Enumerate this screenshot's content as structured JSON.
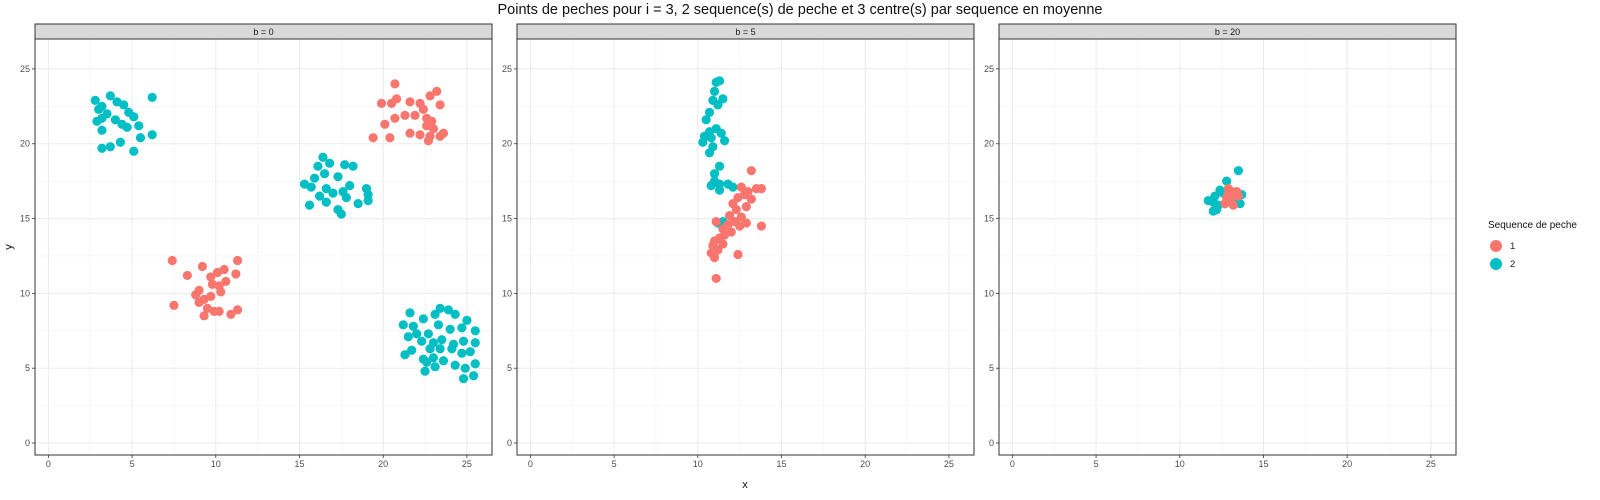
{
  "chart_data": {
    "type": "scatter",
    "title": "Points de peches pour i = 3, 2 sequence(s) de peche et 3 centre(s) par sequence en moyenne",
    "xlabel": "x",
    "ylabel": "y",
    "xlim": [
      -0.8,
      26.5
    ],
    "ylim": [
      -0.8,
      27
    ],
    "x_ticks": [
      0,
      5,
      10,
      15,
      20,
      25
    ],
    "y_ticks": [
      0,
      5,
      10,
      15,
      20,
      25
    ],
    "grid": true,
    "legend": {
      "title": "Sequence de peche",
      "placement": "right",
      "entries": [
        {
          "label": "1",
          "color": "#F8766D"
        },
        {
          "label": "2",
          "color": "#00BFC4"
        }
      ]
    },
    "facets": [
      {
        "label": "b = 0",
        "series": [
          {
            "name": "1",
            "color": "#F8766D",
            "points": [
              [
                7.4,
                12.2
              ],
              [
                8.3,
                11.2
              ],
              [
                9.2,
                11.8
              ],
              [
                9.7,
                11.1
              ],
              [
                10.1,
                11.4
              ],
              [
                10.5,
                11.6
              ],
              [
                11.3,
                12.2
              ],
              [
                11.2,
                11.3
              ],
              [
                10.6,
                10.8
              ],
              [
                10.2,
                10.5
              ],
              [
                9.8,
                10.6
              ],
              [
                9.0,
                10.2
              ],
              [
                8.8,
                9.9
              ],
              [
                9.3,
                9.6
              ],
              [
                9.7,
                9.8
              ],
              [
                10.3,
                10.1
              ],
              [
                9.0,
                9.4
              ],
              [
                9.5,
                9.0
              ],
              [
                9.9,
                8.8
              ],
              [
                9.3,
                8.5
              ],
              [
                10.2,
                8.8
              ],
              [
                10.9,
                8.6
              ],
              [
                11.3,
                8.9
              ],
              [
                7.5,
                9.2
              ]
            ]
          },
          {
            "name": "1",
            "color": "#F8766D",
            "points": [
              [
                20.7,
                24.0
              ],
              [
                19.9,
                22.7
              ],
              [
                20.5,
                22.7
              ],
              [
                20.8,
                23.0
              ],
              [
                21.6,
                22.8
              ],
              [
                22.2,
                22.7
              ],
              [
                22.8,
                23.2
              ],
              [
                23.2,
                23.5
              ],
              [
                23.4,
                22.6
              ],
              [
                22.4,
                22.3
              ],
              [
                21.3,
                21.9
              ],
              [
                20.7,
                21.7
              ],
              [
                20.1,
                21.3
              ],
              [
                21.9,
                21.9
              ],
              [
                22.6,
                21.7
              ],
              [
                22.9,
                21.5
              ],
              [
                23.0,
                21.0
              ],
              [
                22.6,
                21.2
              ],
              [
                21.6,
                20.7
              ],
              [
                22.2,
                20.6
              ],
              [
                22.8,
                20.5
              ],
              [
                23.4,
                20.5
              ],
              [
                22.7,
                20.2
              ],
              [
                20.4,
                20.4
              ],
              [
                19.4,
                20.4
              ],
              [
                23.6,
                20.7
              ]
            ]
          },
          {
            "name": "2",
            "color": "#00BFC4",
            "points": [
              [
                2.8,
                22.9
              ],
              [
                3.2,
                22.5
              ],
              [
                3.7,
                23.2
              ],
              [
                4.1,
                22.8
              ],
              [
                4.5,
                22.6
              ],
              [
                3.0,
                22.3
              ],
              [
                3.5,
                22.0
              ],
              [
                4.8,
                22.1
              ],
              [
                5.1,
                21.8
              ],
              [
                3.2,
                21.7
              ],
              [
                2.9,
                21.5
              ],
              [
                4.0,
                21.6
              ],
              [
                4.4,
                21.3
              ],
              [
                4.7,
                21.1
              ],
              [
                3.2,
                20.9
              ],
              [
                5.4,
                21.2
              ],
              [
                5.5,
                20.4
              ],
              [
                6.2,
                20.6
              ],
              [
                4.3,
                20.1
              ],
              [
                3.7,
                19.8
              ],
              [
                3.2,
                19.7
              ],
              [
                5.1,
                19.5
              ],
              [
                6.2,
                23.1
              ]
            ]
          },
          {
            "name": "2",
            "color": "#00BFC4",
            "points": [
              [
                16.4,
                19.1
              ],
              [
                16.8,
                18.7
              ],
              [
                16.1,
                18.5
              ],
              [
                17.7,
                18.6
              ],
              [
                18.2,
                18.5
              ],
              [
                16.5,
                18.0
              ],
              [
                15.9,
                17.7
              ],
              [
                17.3,
                17.8
              ],
              [
                15.3,
                17.3
              ],
              [
                15.7,
                17.1
              ],
              [
                16.6,
                17.0
              ],
              [
                17.0,
                16.7
              ],
              [
                17.6,
                16.8
              ],
              [
                18.0,
                17.2
              ],
              [
                19.0,
                17.0
              ],
              [
                19.1,
                16.6
              ],
              [
                16.2,
                16.5
              ],
              [
                17.8,
                16.4
              ],
              [
                18.5,
                16.0
              ],
              [
                19.1,
                16.2
              ],
              [
                15.6,
                15.9
              ],
              [
                17.3,
                15.6
              ],
              [
                17.5,
                15.3
              ],
              [
                16.6,
                16.1
              ]
            ]
          },
          {
            "name": "2",
            "color": "#00BFC4",
            "points": [
              [
                21.2,
                7.9
              ],
              [
                21.6,
                8.7
              ],
              [
                21.8,
                7.8
              ],
              [
                22.4,
                8.3
              ],
              [
                23.1,
                8.6
              ],
              [
                23.4,
                9.0
              ],
              [
                23.9,
                8.9
              ],
              [
                24.3,
                8.6
              ],
              [
                25.0,
                8.2
              ],
              [
                25.5,
                7.5
              ],
              [
                24.7,
                7.7
              ],
              [
                24.0,
                7.6
              ],
              [
                23.3,
                7.9
              ],
              [
                22.7,
                7.3
              ],
              [
                22.0,
                7.3
              ],
              [
                21.5,
                7.1
              ],
              [
                22.3,
                6.8
              ],
              [
                23.0,
                6.7
              ],
              [
                23.5,
                6.9
              ],
              [
                24.2,
                6.6
              ],
              [
                24.8,
                6.8
              ],
              [
                25.5,
                6.7
              ],
              [
                21.7,
                6.2
              ],
              [
                22.8,
                6.3
              ],
              [
                23.4,
                6.3
              ],
              [
                24.1,
                6.3
              ],
              [
                24.7,
                6.0
              ],
              [
                25.2,
                6.1
              ],
              [
                21.3,
                5.9
              ],
              [
                22.4,
                5.6
              ],
              [
                23.0,
                5.7
              ],
              [
                23.6,
                5.5
              ],
              [
                24.3,
                5.2
              ],
              [
                24.9,
                5.0
              ],
              [
                25.5,
                5.3
              ],
              [
                22.6,
                5.4
              ],
              [
                23.1,
                5.1
              ],
              [
                22.5,
                4.8
              ],
              [
                24.8,
                4.3
              ],
              [
                25.4,
                4.5
              ]
            ]
          }
        ]
      },
      {
        "label": "b = 5",
        "series": [
          {
            "name": "2",
            "color": "#00BFC4",
            "points": [
              [
                11.1,
                24.1
              ],
              [
                11.3,
                24.2
              ],
              [
                11.0,
                23.5
              ],
              [
                11.5,
                23.0
              ],
              [
                10.9,
                22.9
              ],
              [
                11.2,
                22.6
              ],
              [
                10.7,
                22.1
              ],
              [
                10.5,
                21.6
              ],
              [
                11.1,
                21.0
              ],
              [
                10.7,
                20.8
              ],
              [
                10.4,
                20.5
              ],
              [
                10.8,
                20.4
              ],
              [
                11.4,
                20.7
              ],
              [
                10.3,
                20.1
              ],
              [
                10.9,
                19.8
              ],
              [
                11.6,
                20.2
              ],
              [
                10.7,
                19.4
              ],
              [
                11.3,
                18.5
              ],
              [
                11.0,
                18.0
              ],
              [
                11.3,
                17.3
              ],
              [
                11.0,
                17.5
              ],
              [
                11.8,
                17.3
              ],
              [
                11.3,
                16.9
              ],
              [
                11.5,
                14.8
              ],
              [
                11.2,
                14.7
              ],
              [
                12.1,
                17.1
              ],
              [
                10.8,
                17.2
              ]
            ]
          },
          {
            "name": "1",
            "color": "#F8766D",
            "points": [
              [
                13.2,
                18.2
              ],
              [
                12.6,
                17.1
              ],
              [
                13.5,
                17.0
              ],
              [
                13.0,
                16.8
              ],
              [
                13.8,
                17.0
              ],
              [
                12.8,
                16.6
              ],
              [
                12.4,
                16.4
              ],
              [
                13.2,
                16.3
              ],
              [
                12.1,
                16.0
              ],
              [
                12.9,
                15.8
              ],
              [
                12.3,
                15.6
              ],
              [
                11.9,
                15.2
              ],
              [
                12.6,
                15.1
              ],
              [
                12.2,
                14.8
              ],
              [
                11.8,
                14.6
              ],
              [
                12.5,
                14.5
              ],
              [
                12.9,
                14.7
              ],
              [
                11.5,
                14.3
              ],
              [
                12.0,
                14.1
              ],
              [
                11.6,
                13.9
              ],
              [
                11.3,
                13.7
              ],
              [
                11.0,
                13.5
              ],
              [
                11.5,
                13.3
              ],
              [
                10.9,
                13.2
              ],
              [
                11.2,
                12.9
              ],
              [
                10.8,
                12.7
              ],
              [
                11.0,
                12.4
              ],
              [
                11.1,
                14.8
              ],
              [
                12.4,
                12.6
              ],
              [
                13.8,
                14.5
              ],
              [
                11.1,
                11.0
              ]
            ]
          }
        ]
      },
      {
        "label": "b = 20",
        "series": [
          {
            "name": "2",
            "color": "#00BFC4",
            "points": [
              [
                12.1,
                16.5
              ],
              [
                12.4,
                16.9
              ],
              [
                12.6,
                16.7
              ],
              [
                12.8,
                17.5
              ],
              [
                11.7,
                16.2
              ],
              [
                12.0,
                16.1
              ],
              [
                12.3,
                15.9
              ],
              [
                12.2,
                15.6
              ],
              [
                12.0,
                15.5
              ],
              [
                12.7,
                16.0
              ],
              [
                13.4,
                16.3
              ],
              [
                13.7,
                16.6
              ],
              [
                13.5,
                18.2
              ],
              [
                13.2,
                16.1
              ],
              [
                13.6,
                16.0
              ]
            ]
          },
          {
            "name": "1",
            "color": "#F8766D",
            "points": [
              [
                12.9,
                17.0
              ],
              [
                13.1,
                16.8
              ],
              [
                13.3,
                16.6
              ],
              [
                12.8,
                16.4
              ],
              [
                13.0,
                16.2
              ],
              [
                13.4,
                16.8
              ],
              [
                12.7,
                16.0
              ],
              [
                13.2,
                15.9
              ],
              [
                13.5,
                16.5
              ],
              [
                12.9,
                16.6
              ]
            ]
          }
        ]
      }
    ]
  }
}
